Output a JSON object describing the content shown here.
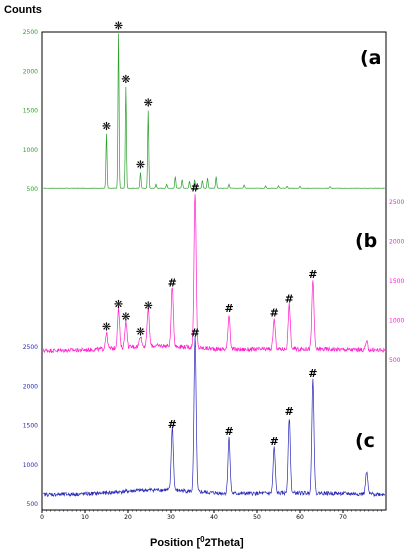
{
  "chart_data": {
    "type": "line",
    "ylabel": "Counts",
    "xlabel_main": "Position [",
    "xlabel_sup": "0",
    "xlabel_end": "2Theta]",
    "x_ticks": [
      "0",
      "10",
      "20",
      "30",
      "40",
      "50",
      "60",
      "70"
    ],
    "xlim": [
      0,
      80
    ],
    "panels": [
      {
        "label": "(a",
        "color": "#2ca02c",
        "y_ticks": [
          "500",
          "1000",
          "1500",
          "2000",
          "2500"
        ],
        "ylim": [
          500,
          2500
        ],
        "tick_side": "left",
        "baseline": 510,
        "noise": 4,
        "peaks": [
          {
            "x": 15.0,
            "y": 1200
          },
          {
            "x": 17.8,
            "y": 2480
          },
          {
            "x": 19.5,
            "y": 1800
          },
          {
            "x": 22.9,
            "y": 710
          },
          {
            "x": 24.7,
            "y": 1500
          },
          {
            "x": 26.5,
            "y": 560
          },
          {
            "x": 29.0,
            "y": 560
          },
          {
            "x": 31.0,
            "y": 660
          },
          {
            "x": 32.6,
            "y": 620
          },
          {
            "x": 34.3,
            "y": 600
          },
          {
            "x": 35.5,
            "y": 620
          },
          {
            "x": 37.3,
            "y": 610
          },
          {
            "x": 38.5,
            "y": 640
          },
          {
            "x": 40.5,
            "y": 660
          },
          {
            "x": 43.5,
            "y": 560
          },
          {
            "x": 47.0,
            "y": 550
          },
          {
            "x": 52.0,
            "y": 540
          },
          {
            "x": 55.0,
            "y": 540
          },
          {
            "x": 57.0,
            "y": 535
          },
          {
            "x": 60.0,
            "y": 535
          },
          {
            "x": 67.0,
            "y": 530
          }
        ],
        "markers": [
          {
            "x": 15.0,
            "y": 1200,
            "symbol": "❋"
          },
          {
            "x": 17.8,
            "y": 2480,
            "symbol": "❋"
          },
          {
            "x": 19.5,
            "y": 1800,
            "symbol": "❋"
          },
          {
            "x": 22.9,
            "y": 710,
            "symbol": "❋"
          },
          {
            "x": 24.7,
            "y": 1500,
            "symbol": "❋"
          }
        ]
      },
      {
        "label": "(b",
        "color": "#ff1fcc",
        "y_ticks": [
          "500",
          "1000",
          "1500",
          "2000",
          "2500"
        ],
        "ylim": [
          500,
          2500
        ],
        "tick_side": "right",
        "baseline": 620,
        "noise": 55,
        "peaks": [
          {
            "x": 15.0,
            "y": 820
          },
          {
            "x": 17.8,
            "y": 1110
          },
          {
            "x": 19.5,
            "y": 950
          },
          {
            "x": 22.9,
            "y": 760
          },
          {
            "x": 24.7,
            "y": 1090
          },
          {
            "x": 30.3,
            "y": 1380
          },
          {
            "x": 35.6,
            "y": 2580
          },
          {
            "x": 43.5,
            "y": 1060
          },
          {
            "x": 54.0,
            "y": 1000
          },
          {
            "x": 57.5,
            "y": 1180
          },
          {
            "x": 63.0,
            "y": 1490
          },
          {
            "x": 75.5,
            "y": 720
          }
        ],
        "markers": [
          {
            "x": 15.0,
            "y": 820,
            "symbol": "❋"
          },
          {
            "x": 17.8,
            "y": 1110,
            "symbol": "❋"
          },
          {
            "x": 19.5,
            "y": 950,
            "symbol": "❋"
          },
          {
            "x": 22.9,
            "y": 760,
            "symbol": "❋"
          },
          {
            "x": 24.7,
            "y": 1090,
            "symbol": "❋"
          },
          {
            "x": 30.3,
            "y": 1380,
            "symbol": "#"
          },
          {
            "x": 35.6,
            "y": 2580,
            "symbol": "#"
          },
          {
            "x": 43.5,
            "y": 1060,
            "symbol": "#"
          },
          {
            "x": 54.0,
            "y": 1000,
            "symbol": "#"
          },
          {
            "x": 57.5,
            "y": 1180,
            "symbol": "#"
          },
          {
            "x": 63.0,
            "y": 1490,
            "symbol": "#"
          }
        ]
      },
      {
        "label": "(c",
        "color": "#2a2ab8",
        "y_ticks": [
          "500",
          "1000",
          "1500",
          "2000",
          "2500"
        ],
        "ylim": [
          500,
          2500
        ],
        "tick_side": "left",
        "baseline": 620,
        "noise": 50,
        "peaks": [
          {
            "x": 30.3,
            "y": 1420
          },
          {
            "x": 35.6,
            "y": 2580
          },
          {
            "x": 43.5,
            "y": 1330
          },
          {
            "x": 54.0,
            "y": 1200
          },
          {
            "x": 57.5,
            "y": 1580
          },
          {
            "x": 63.0,
            "y": 2070
          },
          {
            "x": 75.5,
            "y": 900
          }
        ],
        "markers": [
          {
            "x": 30.3,
            "y": 1420,
            "symbol": "#"
          },
          {
            "x": 35.6,
            "y": 2580,
            "symbol": "#"
          },
          {
            "x": 43.5,
            "y": 1330,
            "symbol": "#"
          },
          {
            "x": 54.0,
            "y": 1200,
            "symbol": "#"
          },
          {
            "x": 57.5,
            "y": 1580,
            "symbol": "#"
          },
          {
            "x": 63.0,
            "y": 2070,
            "symbol": "#"
          }
        ]
      }
    ]
  }
}
